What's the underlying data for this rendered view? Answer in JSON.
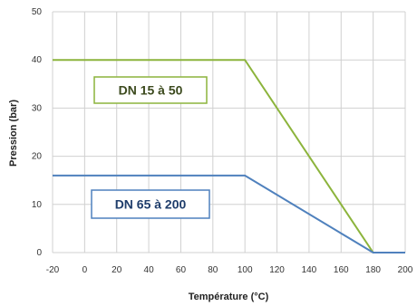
{
  "chart_data": {
    "type": "line",
    "title": "",
    "xlabel": "Température (°C)",
    "ylabel": "Pression (bar)",
    "xlim": [
      -20,
      200
    ],
    "ylim": [
      0,
      50
    ],
    "xticks": [
      -20,
      0,
      20,
      40,
      60,
      80,
      100,
      120,
      140,
      160,
      180,
      200
    ],
    "yticks": [
      0,
      10,
      20,
      30,
      40,
      50
    ],
    "grid": true,
    "series": [
      {
        "name": "DN 15 à 50",
        "color": "#8cb43c",
        "x": [
          -20,
          100,
          180,
          200
        ],
        "y": [
          40,
          40,
          0,
          0
        ]
      },
      {
        "name": "DN 65 à 200",
        "color": "#4f81bd",
        "x": [
          -20,
          100,
          180,
          200
        ],
        "y": [
          16,
          16,
          0,
          0
        ]
      }
    ]
  }
}
